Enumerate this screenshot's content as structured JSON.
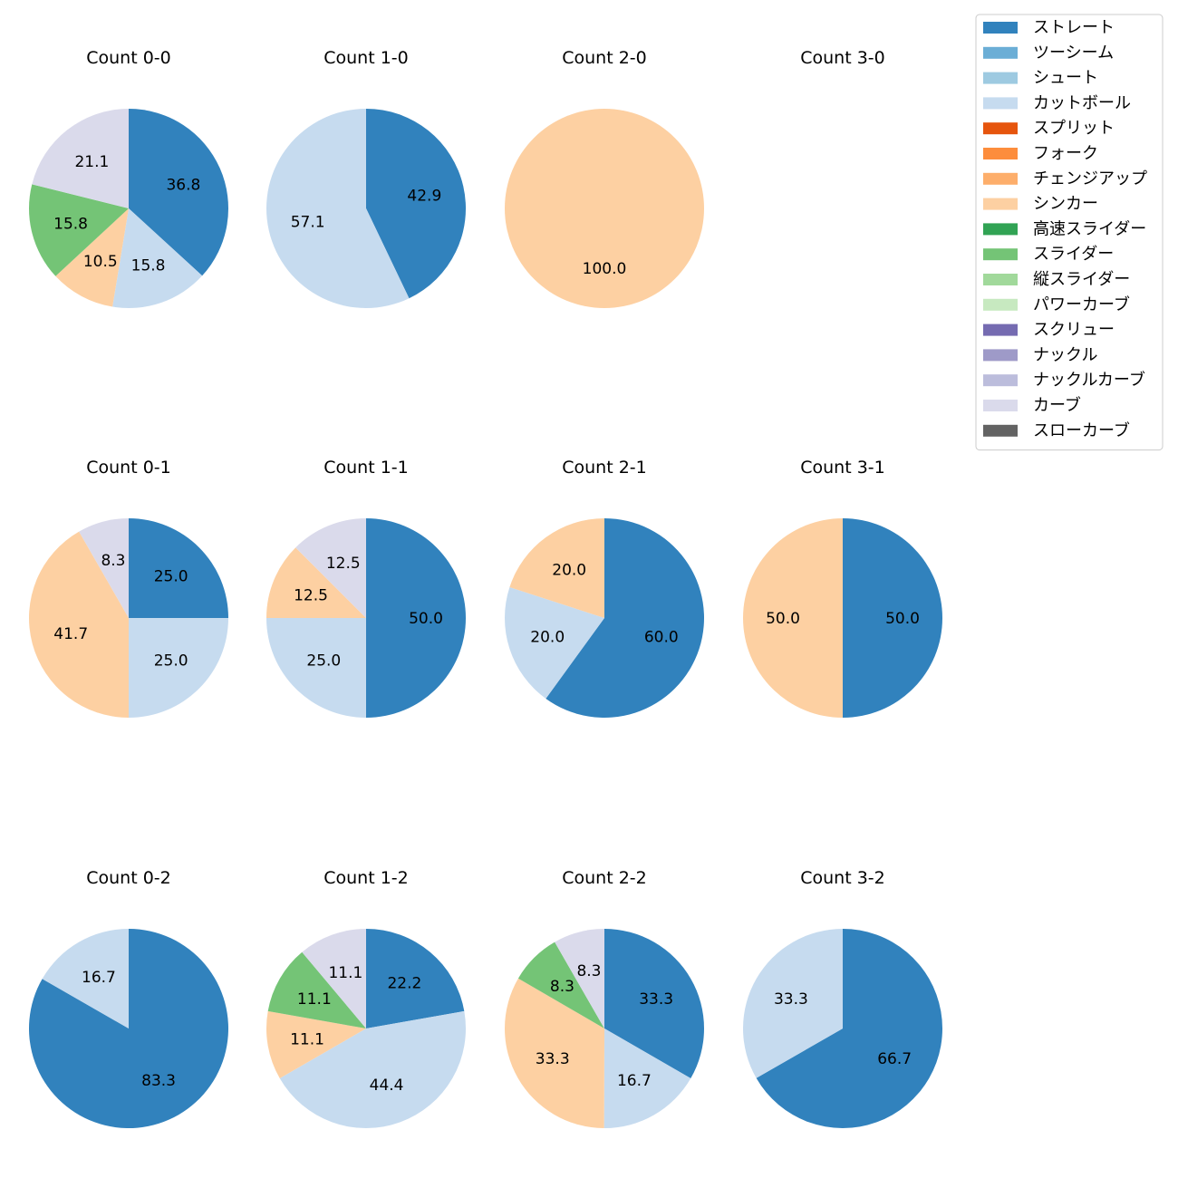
{
  "chart_data": {
    "type": "pie",
    "legend": {
      "placement": "top-right",
      "entries": [
        {
          "name": "ストレート",
          "color": "#3182bd"
        },
        {
          "name": "ツーシーム",
          "color": "#6baed6"
        },
        {
          "name": "シュート",
          "color": "#9ecae1"
        },
        {
          "name": "カットボール",
          "color": "#c6dbef"
        },
        {
          "name": "スプリット",
          "color": "#e6550d"
        },
        {
          "name": "フォーク",
          "color": "#fd8d3c"
        },
        {
          "name": "チェンジアップ",
          "color": "#fdae6b"
        },
        {
          "name": "シンカー",
          "color": "#fdd0a2"
        },
        {
          "name": "高速スライダー",
          "color": "#31a354"
        },
        {
          "name": "スライダー",
          "color": "#74c476"
        },
        {
          "name": "縦スライダー",
          "color": "#a1d99b"
        },
        {
          "name": "パワーカーブ",
          "color": "#c7e9c0"
        },
        {
          "name": "スクリュー",
          "color": "#756bb1"
        },
        {
          "name": "ナックル",
          "color": "#9e9ac8"
        },
        {
          "name": "ナックルカーブ",
          "color": "#bcbddc"
        },
        {
          "name": "カーブ",
          "color": "#dadaeb"
        },
        {
          "name": "スローカーブ",
          "color": "#636363"
        }
      ]
    },
    "charts": [
      {
        "title": "Count 0-0",
        "slices": [
          {
            "pitch": "ストレート",
            "value": 36.8,
            "label": "36.8"
          },
          {
            "pitch": "カットボール",
            "value": 15.8,
            "label": "15.8"
          },
          {
            "pitch": "シンカー",
            "value": 10.5,
            "label": "10.5"
          },
          {
            "pitch": "スライダー",
            "value": 15.8,
            "label": "15.8"
          },
          {
            "pitch": "カーブ",
            "value": 21.1,
            "label": "21.1"
          }
        ]
      },
      {
        "title": "Count 1-0",
        "slices": [
          {
            "pitch": "ストレート",
            "value": 42.9,
            "label": "42.9"
          },
          {
            "pitch": "カットボール",
            "value": 57.1,
            "label": "57.1"
          }
        ]
      },
      {
        "title": "Count 2-0",
        "slices": [
          {
            "pitch": "シンカー",
            "value": 100.0,
            "label": "100.0"
          }
        ]
      },
      {
        "title": "Count 3-0",
        "slices": []
      },
      {
        "title": "Count 0-1",
        "slices": [
          {
            "pitch": "ストレート",
            "value": 25.0,
            "label": "25.0"
          },
          {
            "pitch": "カットボール",
            "value": 25.0,
            "label": "25.0"
          },
          {
            "pitch": "シンカー",
            "value": 41.7,
            "label": "41.7"
          },
          {
            "pitch": "カーブ",
            "value": 8.3,
            "label": "8.3"
          }
        ]
      },
      {
        "title": "Count 1-1",
        "slices": [
          {
            "pitch": "ストレート",
            "value": 50.0,
            "label": "50.0"
          },
          {
            "pitch": "カットボール",
            "value": 25.0,
            "label": "25.0"
          },
          {
            "pitch": "シンカー",
            "value": 12.5,
            "label": "12.5"
          },
          {
            "pitch": "カーブ",
            "value": 12.5,
            "label": "12.5"
          }
        ]
      },
      {
        "title": "Count 2-1",
        "slices": [
          {
            "pitch": "ストレート",
            "value": 60.0,
            "label": "60.0"
          },
          {
            "pitch": "カットボール",
            "value": 20.0,
            "label": "20.0"
          },
          {
            "pitch": "シンカー",
            "value": 20.0,
            "label": "20.0"
          }
        ]
      },
      {
        "title": "Count 3-1",
        "slices": [
          {
            "pitch": "ストレート",
            "value": 50.0,
            "label": "50.0"
          },
          {
            "pitch": "シンカー",
            "value": 50.0,
            "label": "50.0"
          }
        ]
      },
      {
        "title": "Count 0-2",
        "slices": [
          {
            "pitch": "ストレート",
            "value": 83.3,
            "label": "83.3"
          },
          {
            "pitch": "カットボール",
            "value": 16.7,
            "label": "16.7"
          }
        ]
      },
      {
        "title": "Count 1-2",
        "slices": [
          {
            "pitch": "ストレート",
            "value": 22.2,
            "label": "22.2"
          },
          {
            "pitch": "カットボール",
            "value": 44.4,
            "label": "44.4"
          },
          {
            "pitch": "シンカー",
            "value": 11.1,
            "label": "11.1"
          },
          {
            "pitch": "スライダー",
            "value": 11.1,
            "label": "11.1"
          },
          {
            "pitch": "カーブ",
            "value": 11.1,
            "label": "11.1"
          }
        ]
      },
      {
        "title": "Count 2-2",
        "slices": [
          {
            "pitch": "ストレート",
            "value": 33.3,
            "label": "33.3"
          },
          {
            "pitch": "カットボール",
            "value": 16.7,
            "label": "16.7"
          },
          {
            "pitch": "シンカー",
            "value": 33.3,
            "label": "33.3"
          },
          {
            "pitch": "スライダー",
            "value": 8.3,
            "label": "8.3"
          },
          {
            "pitch": "カーブ",
            "value": 8.3,
            "label": "8.3"
          }
        ]
      },
      {
        "title": "Count 3-2",
        "slices": [
          {
            "pitch": "ストレート",
            "value": 66.7,
            "label": "66.7"
          },
          {
            "pitch": "カットボール",
            "value": 33.3,
            "label": "33.3"
          }
        ]
      }
    ]
  }
}
